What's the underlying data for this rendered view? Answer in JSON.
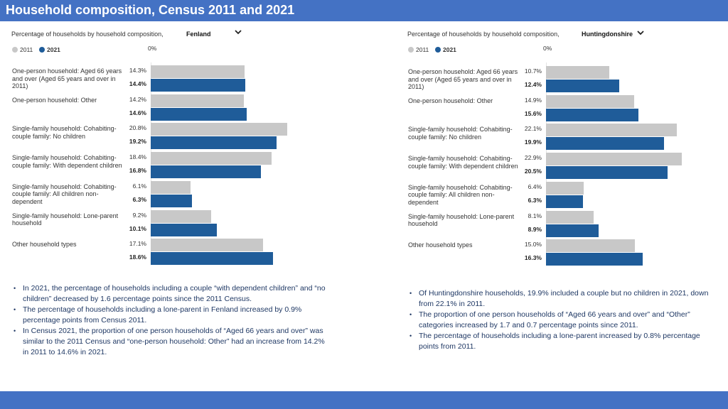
{
  "title": "Household composition, Census 2011 and 2021",
  "chart_data": [
    {
      "type": "bar",
      "orientation": "horizontal",
      "subtitle": "Percentage of households by household composition,",
      "area": "Fenland",
      "categories": [
        "One-person household: Aged 66 years and over (Aged 65 years and over in 2011)",
        "One-person household: Other",
        "Single-family household: Cohabiting-couple family: No children",
        "Single-family household: Cohabiting-couple family: With dependent children",
        "Single-family household: Cohabiting-couple family: All children non-dependent",
        "Single-family household: Lone-parent household",
        "Other household types"
      ],
      "series": [
        {
          "name": "2011",
          "color": "#c8c8c8",
          "values": [
            14.3,
            14.2,
            20.8,
            18.4,
            6.1,
            9.2,
            17.1
          ],
          "value_labels": [
            "14.3%",
            "14.2%",
            "20.8%",
            "18.4%",
            "6.1%",
            "9.2%",
            "17.1%"
          ]
        },
        {
          "name": "2021",
          "color": "#1f5c99",
          "values": [
            14.4,
            14.6,
            19.2,
            16.8,
            6.3,
            10.1,
            18.6
          ],
          "value_labels": [
            "14.4%",
            "14.6%",
            "19.2%",
            "16.8%",
            "6.3%",
            "10.1%",
            "18.6%"
          ]
        }
      ],
      "xlim": [
        0,
        25
      ],
      "xticks": [
        {
          "value": 0,
          "label": "0%"
        }
      ],
      "notes": [
        "In 2021, the percentage of households including a couple “with dependent children” and “no children” decreased by 1.6 percentage points since the 2011 Census.",
        "The percentage of households including a lone-parent in Fenland increased by 0.9% percentage points from Census 2011.",
        "In Census 2021, the proportion of one person households of “Aged 66 years and over” was similar to the 2011 Census and “one-person household: Other” had an increase from 14.2% in 2011 to 14.6% in 2021."
      ]
    },
    {
      "type": "bar",
      "orientation": "horizontal",
      "subtitle": "Percentage of households by household composition,",
      "area": "Huntingdonshire",
      "categories": [
        "One-person household: Aged 66 years and over (Aged 65 years and over in 2011)",
        "One-person household: Other",
        "Single-family household: Cohabiting-couple family: No children",
        "Single-family household: Cohabiting-couple family: With dependent children",
        "Single-family household: Cohabiting-couple family: All children non-dependent",
        "Single-family household: Lone-parent household",
        "Other household types"
      ],
      "series": [
        {
          "name": "2011",
          "color": "#c8c8c8",
          "values": [
            10.7,
            14.9,
            22.1,
            22.9,
            6.4,
            8.1,
            15.0
          ],
          "value_labels": [
            "10.7%",
            "14.9%",
            "22.1%",
            "22.9%",
            "6.4%",
            "8.1%",
            "15.0%"
          ]
        },
        {
          "name": "2021",
          "color": "#1f5c99",
          "values": [
            12.4,
            15.6,
            19.9,
            20.5,
            6.3,
            8.9,
            16.3
          ],
          "value_labels": [
            "12.4%",
            "15.6%",
            "19.9%",
            "20.5%",
            "6.3%",
            "8.9%",
            "16.3%"
          ]
        }
      ],
      "xlim": [
        0,
        25
      ],
      "xticks": [
        {
          "value": 0,
          "label": "0%"
        }
      ],
      "notes": [
        "Of Huntingdonshire households, 19.9% included a couple but no children in 2021, down from 22.1% in 2011.",
        "The proportion of one person households of “Aged 66 years and over” and “Other” categories increased by 1.7 and 0.7 percentage points since 2011.",
        "The percentage of households including a lone-parent increased by 0.8% percentage points from 2011."
      ]
    }
  ]
}
